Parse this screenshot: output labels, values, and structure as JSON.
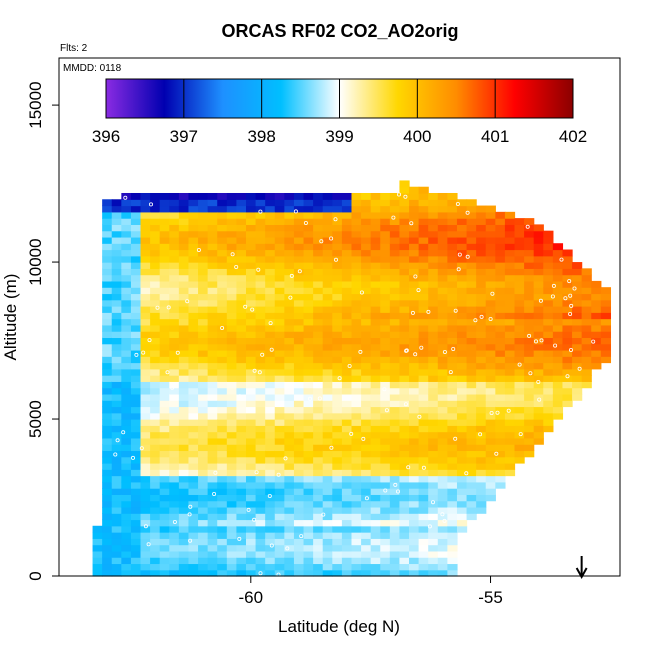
{
  "chart_data": {
    "type": "heatmap",
    "title": "ORCAS RF02 CO2_AO2orig",
    "flights_note": "Flts: 2",
    "mmdd_note": "MMDD: 0118",
    "xlabel": "Latitude (deg N)",
    "ylabel": "Altitude (m)",
    "xlim": [
      -64,
      -52.3
    ],
    "ylim": [
      0,
      16500
    ],
    "x_ticks": [
      -60,
      -55
    ],
    "y_ticks": [
      0,
      5000,
      10000,
      15000
    ],
    "colorbar": {
      "range": [
        396,
        402
      ],
      "ticks": [
        396,
        397,
        398,
        399,
        400,
        401,
        402
      ],
      "colors": [
        "#8a2be2",
        "#0000b0",
        "#1e90ff",
        "#00bfff",
        "#ffffff",
        "#ffd700",
        "#ff8c00",
        "#ff0000",
        "#8b0000"
      ]
    },
    "curtain": {
      "lat_min": -63.3,
      "lat_bins": 60,
      "lat_step": 0.2,
      "alt_max": 12500,
      "alt_step": 200
    },
    "marker_arrow_latitude": -53.1
  }
}
